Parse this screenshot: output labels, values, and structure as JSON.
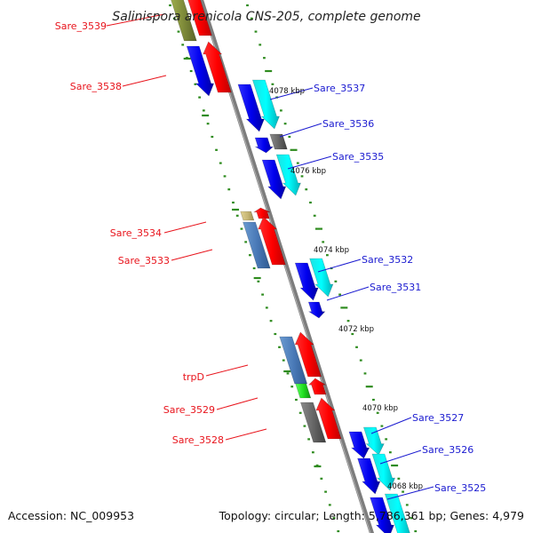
{
  "title": "Salinispora arenicola CNS-205, complete genome",
  "footer": {
    "accession": "Accession: NC_009953",
    "topology": "Topology: circular; Length: 5,786,361 bp; Genes: 4,979"
  },
  "colors": {
    "backbone": "#808080",
    "tick": "#2e8b1e",
    "label_forward_strand": "#e8141c",
    "label_reverse_strand": "#1a1ad0"
  },
  "kbp_markers": [
    "4078 kbp",
    "4076 kbp",
    "4074 kbp",
    "4072 kbp",
    "4070 kbp",
    "4068 kbp"
  ],
  "genes_left": [
    {
      "label": "Sare_3539"
    },
    {
      "label": "Sare_3538"
    },
    {
      "label": "Sare_3534"
    },
    {
      "label": "Sare_3533"
    },
    {
      "label": "trpD"
    },
    {
      "label": "Sare_3529"
    },
    {
      "label": "Sare_3528"
    }
  ],
  "genes_right": [
    {
      "label": "Sare_3537"
    },
    {
      "label": "Sare_3536"
    },
    {
      "label": "Sare_3535"
    },
    {
      "label": "Sare_3532"
    },
    {
      "label": "Sare_3531"
    },
    {
      "label": "Sare_3527"
    },
    {
      "label": "Sare_3526"
    },
    {
      "label": "Sare_3525"
    }
  ]
}
